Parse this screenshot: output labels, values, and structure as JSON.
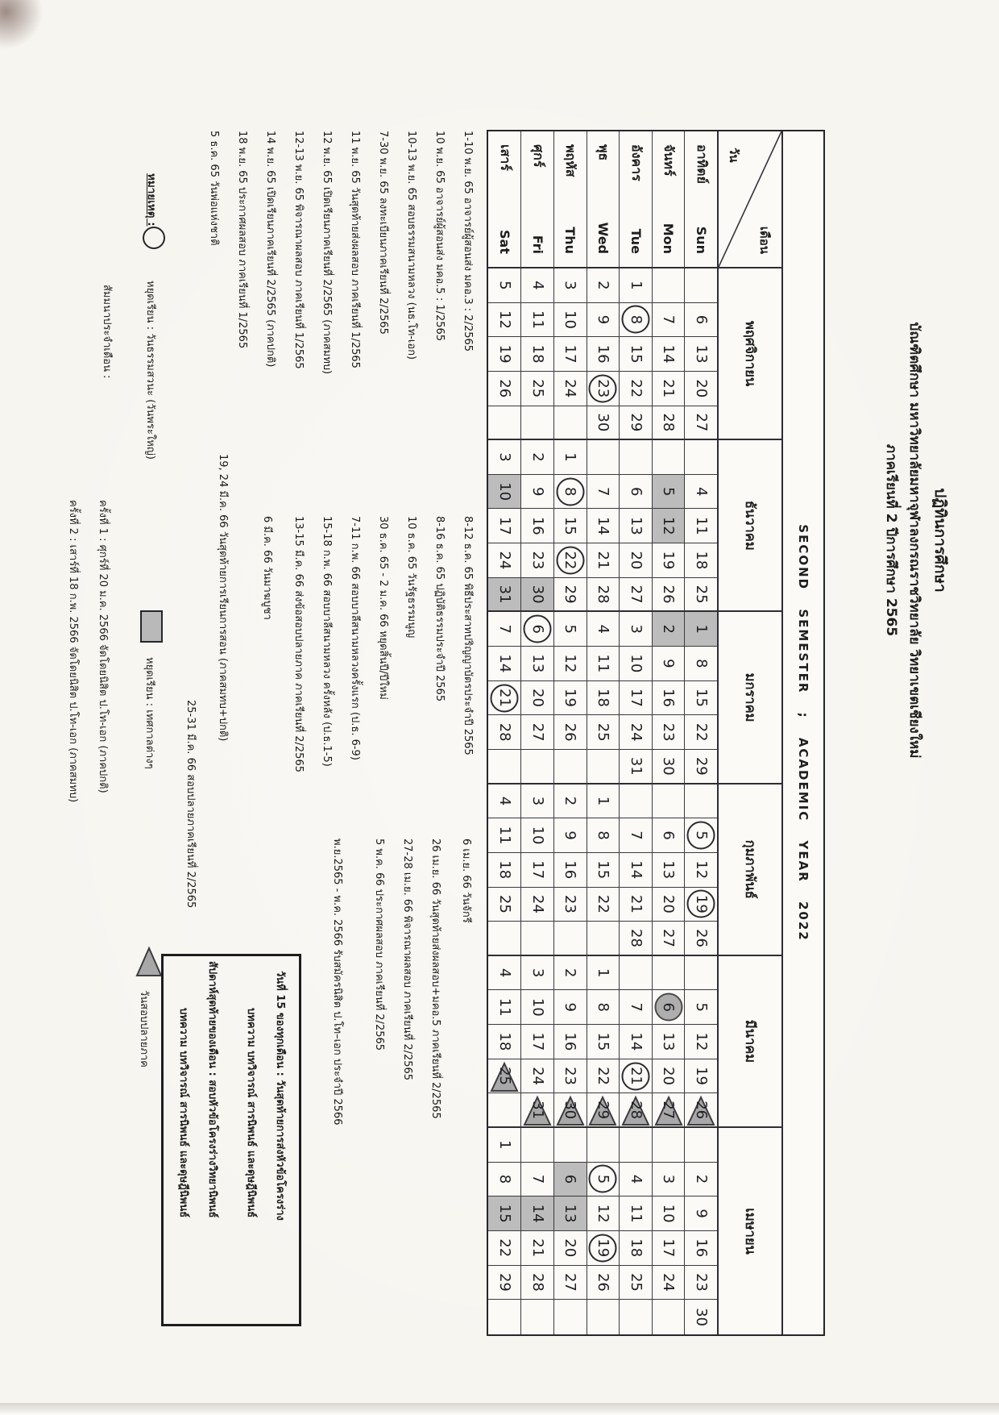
{
  "title": {
    "line1": "ปฏิทินการศึกษา",
    "line2": "บัณฑิตศึกษา มหาวิทยาลัยมหาจุฬาลงกรณราชวิทยาลัย วิทยาเขตเชียงใหม่",
    "line3": "ภาคเรียนที่ 2 ปีการศึกษา 2565"
  },
  "table": {
    "banner": "SECOND  SEMESTER ;  ACADEMIC  YEAR  2022",
    "corner": {
      "month_label": "เดือน",
      "day_label": "วัน"
    },
    "months": [
      {
        "name": "พฤศจิกายน",
        "weeks": 5
      },
      {
        "name": "ธันวาคม",
        "weeks": 5
      },
      {
        "name": "มกราคม",
        "weeks": 5
      },
      {
        "name": "กุมภาพันธ์",
        "weeks": 5
      },
      {
        "name": "มีนาคม",
        "weeks": 5
      },
      {
        "name": "เมษายน",
        "weeks": 6
      }
    ],
    "mark_key": {
      "c": "circle = วันธรรมสวนะ",
      "g": "gray = holiday",
      "t": "triangle = exam day",
      "gc": "gray circle"
    },
    "day_rows": [
      {
        "th": "อาทิตย์",
        "en": "Sun",
        "cells": [
          "",
          "6",
          "13",
          "20",
          "27",
          "",
          "4",
          "11",
          "18",
          "25",
          "1g",
          "8",
          "15",
          "22",
          "29",
          "",
          "5c",
          "12",
          "19c",
          "26",
          "",
          "5",
          "12",
          "19",
          "26t",
          "",
          "2",
          "9",
          "16",
          "23",
          "30"
        ]
      },
      {
        "th": "จันทร์",
        "en": "Mon",
        "cells": [
          "",
          "7",
          "14",
          "21",
          "28",
          "",
          "5g",
          "12g",
          "19",
          "26",
          "2g",
          "9",
          "16",
          "23",
          "30",
          "",
          "6",
          "13",
          "20",
          "27",
          "",
          "6gc",
          "13",
          "20",
          "27t",
          "",
          "3",
          "10",
          "17",
          "24",
          ""
        ]
      },
      {
        "th": "อังคาร",
        "en": "Tue",
        "cells": [
          "1",
          "8c",
          "15",
          "22",
          "29",
          "",
          "6",
          "13",
          "20",
          "27",
          "3",
          "10",
          "17",
          "24",
          "31",
          "",
          "7",
          "14",
          "21",
          "28",
          "",
          "7",
          "14",
          "21c",
          "28t",
          "",
          "4",
          "11",
          "18",
          "25",
          ""
        ]
      },
      {
        "th": "พุธ",
        "en": "Wed",
        "cells": [
          "2",
          "9",
          "16",
          "23c",
          "30",
          "",
          "7",
          "14",
          "21",
          "28",
          "4",
          "11",
          "18",
          "25",
          "",
          "1",
          "8",
          "15",
          "22",
          "",
          "1",
          "8",
          "15",
          "22",
          "29t",
          "",
          "5c",
          "12",
          "19c",
          "26",
          ""
        ]
      },
      {
        "th": "พฤหัส",
        "en": "Thu",
        "cells": [
          "3",
          "10",
          "17",
          "24",
          "",
          "1",
          "8c",
          "15",
          "22c",
          "29",
          "5",
          "12",
          "19",
          "26",
          "",
          "2",
          "9",
          "16",
          "23",
          "",
          "2",
          "9",
          "16",
          "23",
          "30t",
          "",
          "6g",
          "13g",
          "20",
          "27",
          ""
        ]
      },
      {
        "th": "ศุกร์",
        "en": "Fri",
        "cells": [
          "4",
          "11",
          "18",
          "25",
          "",
          "2",
          "9",
          "16",
          "23",
          "30g",
          "6c",
          "13",
          "20",
          "27",
          "",
          "3",
          "10",
          "17",
          "24",
          "",
          "3",
          "10",
          "17",
          "24",
          "31t",
          "",
          "7",
          "14g",
          "21",
          "28",
          ""
        ]
      },
      {
        "th": "เสาร์",
        "en": "Sat",
        "cells": [
          "5",
          "12",
          "19",
          "26",
          "",
          "3",
          "10g",
          "17",
          "24",
          "31g",
          "7",
          "14",
          "21c",
          "28",
          "",
          "4",
          "11",
          "18",
          "25",
          "",
          "4",
          "11",
          "18",
          "25t",
          "",
          "1",
          "8",
          "15g",
          "22",
          "29",
          ""
        ]
      }
    ]
  },
  "notes_col1": [
    "1-10 พ.ย. 65  อาจารย์ผู้สอนส่ง มคอ.3 : 2/2565",
    "10 พ.ย. 65  อาจารย์ผู้สอนส่ง มคอ.5 : 1/2565",
    "10-13 พ.ย. 65 สอบธรรมสนามหลวง (นธ.โท-เอก)",
    "7-30 พ.ย. 65 ลงทะเบียนภาคเรียนที่  2/2565",
    "11 พ.ย. 65  วันสุดท้ายส่งผลสอบ ภาคเรียนที่ 1/2565",
    "12 พ.ย. 65  เปิดเรียนภาคเรียนที่ 2/2565  (ภาคสมทบ)",
    "12-13 พ.ย. 65  พิจารณาผลสอบ ภาคเรียนที่ 1/2565",
    "14 พ.ย. 65  เปิดเรียนภาคเรียนที่ 2/2565  (ภาคปกติ)",
    "18 พ.ย. 65   ประกาศผลสอบ ภาคเรียนที่ 1/2565",
    "5 ธ.ค. 65   วันพ่อแห่งชาติ"
  ],
  "notes_col2": [
    "8-12 ธ.ค. 65  พิธีประสาทปริญญาบัตรประจำปี 2565",
    "8-16 ธ.ค. 65 ปฏิบัติธรรมประจำปี 2565",
    "10 ธ.ค. 65  วันรัฐธรรมนูญ",
    "30 ธ.ค. 65 - 2 ม.ค. 66 หยุดสิ้นปี/ปีใหม่",
    "7-11 ก.พ. 66  สอบบาลีสนามหลวงครั้งแรก (ป.ธ. 6-9)",
    "15-18 ก.พ. 66  สอบบาลีสนามหลวง ครั้งหลัง  (ป.ธ.1-5)",
    "13-15 มี.ค. 66  ส่งข้อสอบปลายภาค ภาคเรียนที่ 2/2565",
    "6 มี.ค. 66  วันมาฆบูชา",
    "19, 24 มี.ค. 66  วันสุดท้ายการเรียนการสอน (ภาคสมทบ+ปกติ)",
    "25-31 มี.ค. 66  สอบปลายภาคเรียนที่ 2/2565"
  ],
  "notes_col3": [
    "6 เม.ย. 66 วันจักรี",
    "26 เม.ย. 66 วันสุดท้ายส่งผลสอบ+มคอ.5 ภาคเรียนที่ 2/2565",
    "27-28 เม.ย. 66  พิจารณาผลสอบ ภาคเรียนที่ 2/2565",
    "5 พ.ค. 66   ประกาศผลสอบ ภาคเรียนที่ 2/2565",
    "พ.ย.2565 - พ.ค. 2566 รับสมัครนิสิต ป.โท–เอก ประจำปี 2566"
  ],
  "legend": {
    "heading": "หมายเหตุ :",
    "circle_label": "หยุดเรียน : วันธรรมสวนะ (วันพระใหญ่)",
    "square_label": "หยุดเรียน : เทศกาลต่างๆ",
    "triangle_label": "วันสอบปลายภาค",
    "seminar_label": "สัมมนาประจำเดือน :",
    "seminar_1": "ครั้งที่ 1 :  ศุกร์ที่  20 ม.ค. 2566  จัดโดยนิสิต ป.โท-เอก (ภาคปกติ)",
    "seminar_2": "ครั้งที่ 2 :  เสาร์ที่  18 ก.พ. 2566  จัดโดยนิสิต ป.โท-เอก (ภาคสมทบ)"
  },
  "thesis_box": {
    "lines": [
      "วันที่ 15 ของทุกเดือน : วันสุดท้ายการส่งหัวข้อโครงร่าง",
      "บทความ บทวิจารณ์ สารนิพนธ์ และดุษฎีนิพนธ์",
      "สัปดาห์สุดท้ายของเดือน : สอบหัวข้อโครงร่างวิทยานิพนธ์",
      "บทความ บทวิจารณ์ สารนิพนธ์ และดุษฎีนิพนธ์"
    ]
  },
  "colors": {
    "paper": "#f7f5f0",
    "ink": "#1e1e1e",
    "grid": "#2e2e32",
    "holiday_fill": "#bcbcbc",
    "exam_triangle_fill": "#a8a8a8"
  }
}
